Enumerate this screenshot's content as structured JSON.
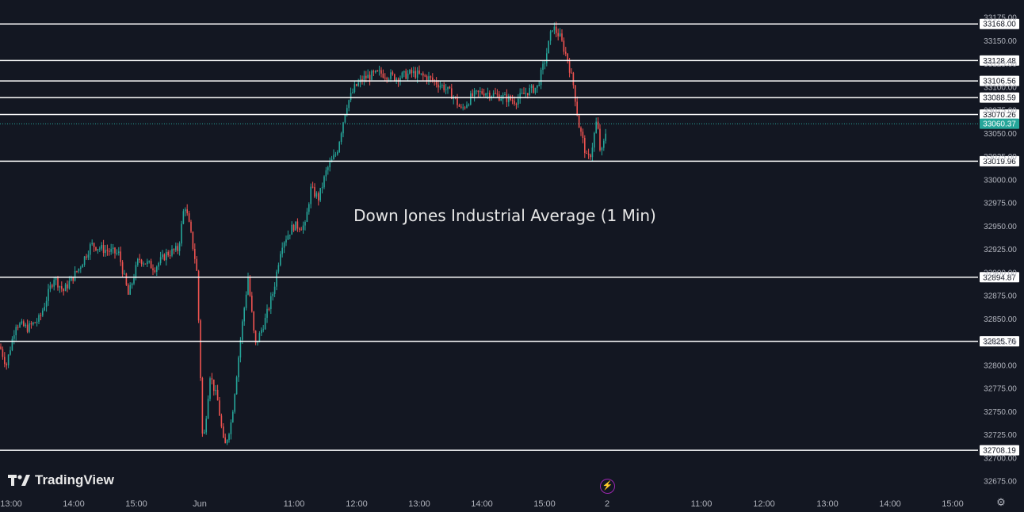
{
  "brand": {
    "name": "TradingView",
    "logo_icon": "tradingview-logo-icon"
  },
  "icons": {
    "bolt": "lightning-bolt-icon",
    "settings": "gear-icon"
  },
  "colors": {
    "background": "#131722",
    "up": "#26a69a",
    "down": "#ef5350",
    "level_line": "#ffffff",
    "last_price": "#26a69a",
    "axis_text": "#b2b5be"
  },
  "chart_data": {
    "type": "candlestick",
    "title": "Down Jones Industrial Average (1 Min)",
    "ylim": [
      32665,
      33185
    ],
    "y_ticks": [
      "33175.00",
      "33150.00",
      "33125.00",
      "33100.00",
      "33075.00",
      "33050.00",
      "33025.00",
      "33000.00",
      "32975.00",
      "32950.00",
      "32925.00",
      "32900.00",
      "32875.00",
      "32850.00",
      "32825.00",
      "32800.00",
      "32775.00",
      "32750.00",
      "32725.00",
      "32700.00",
      "32675.00"
    ],
    "x_ticks": [
      "13:00",
      "14:00",
      "15:00",
      "Jun",
      "11:00",
      "12:00",
      "13:00",
      "14:00",
      "15:00",
      "2",
      "11:00",
      "12:00",
      "13:00",
      "14:00",
      "15:00"
    ],
    "levels": [
      {
        "value": 33168.0,
        "label": "33168.00"
      },
      {
        "value": 33128.48,
        "label": "33128.48"
      },
      {
        "value": 33106.56,
        "label": "33106.56"
      },
      {
        "value": 33088.59,
        "label": "33088.59"
      },
      {
        "value": 33070.26,
        "label": "33070.26"
      },
      {
        "value": 33019.96,
        "label": "33019.96"
      },
      {
        "value": 32894.87,
        "label": "32894.87"
      },
      {
        "value": 32825.76,
        "label": "32825.76"
      },
      {
        "value": 32708.19,
        "label": "32708.19"
      }
    ],
    "last_price": {
      "value": 33060.37,
      "label": "33060.37"
    },
    "price_path": [
      [
        0,
        32820
      ],
      [
        8,
        32800
      ],
      [
        20,
        32845
      ],
      [
        35,
        32840
      ],
      [
        50,
        32850
      ],
      [
        68,
        32895
      ],
      [
        80,
        32880
      ],
      [
        100,
        32905
      ],
      [
        115,
        32930
      ],
      [
        130,
        32925
      ],
      [
        150,
        32920
      ],
      [
        162,
        32875
      ],
      [
        175,
        32915
      ],
      [
        195,
        32905
      ],
      [
        210,
        32920
      ],
      [
        225,
        32925
      ],
      [
        233,
        32975
      ],
      [
        240,
        32945
      ],
      [
        248,
        32905
      ],
      [
        251,
        32840
      ],
      [
        256,
        32710
      ],
      [
        265,
        32790
      ],
      [
        275,
        32760
      ],
      [
        283,
        32710
      ],
      [
        292,
        32740
      ],
      [
        305,
        32840
      ],
      [
        313,
        32895
      ],
      [
        322,
        32820
      ],
      [
        335,
        32850
      ],
      [
        345,
        32880
      ],
      [
        355,
        32930
      ],
      [
        370,
        32950
      ],
      [
        385,
        32950
      ],
      [
        392,
        32990
      ],
      [
        402,
        32980
      ],
      [
        412,
        33010
      ],
      [
        425,
        33030
      ],
      [
        437,
        33080
      ],
      [
        448,
        33100
      ],
      [
        460,
        33110
      ],
      [
        480,
        33115
      ],
      [
        500,
        33110
      ],
      [
        520,
        33115
      ],
      [
        540,
        33110
      ],
      [
        560,
        33100
      ],
      [
        572,
        33090
      ],
      [
        582,
        33075
      ],
      [
        595,
        33090
      ],
      [
        610,
        33095
      ],
      [
        630,
        33090
      ],
      [
        650,
        33085
      ],
      [
        665,
        33095
      ],
      [
        678,
        33100
      ],
      [
        688,
        33130
      ],
      [
        697,
        33165
      ],
      [
        706,
        33155
      ],
      [
        716,
        33130
      ],
      [
        724,
        33100
      ],
      [
        730,
        33060
      ],
      [
        736,
        33040
      ],
      [
        741,
        33020
      ],
      [
        746,
        33030
      ],
      [
        753,
        33065
      ],
      [
        758,
        33025
      ],
      [
        762,
        33040
      ],
      [
        766,
        33060
      ]
    ]
  }
}
